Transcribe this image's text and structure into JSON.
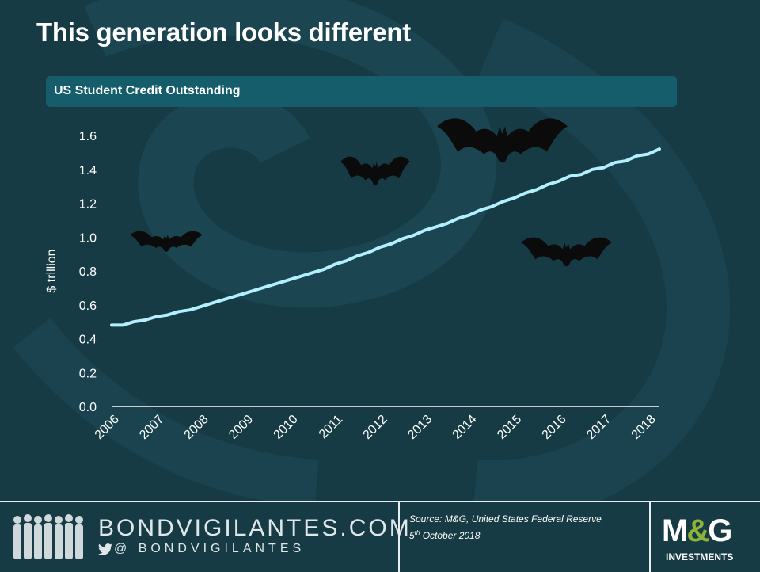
{
  "page": {
    "title": "This generation looks different"
  },
  "chart_panel": {
    "header": "US Student Credit Outstanding"
  },
  "chart_data": {
    "type": "line",
    "title": "US Student Credit Outstanding",
    "ylabel": "$ trillion",
    "xlabel": "",
    "x_tick_labels": [
      "2006",
      "2007",
      "2008",
      "2009",
      "2010",
      "2011",
      "2012",
      "2013",
      "2014",
      "2015",
      "2016",
      "2017",
      "2018"
    ],
    "y_tick_labels": [
      "0.0",
      "0.2",
      "0.4",
      "0.6",
      "0.8",
      "1.0",
      "1.2",
      "1.4",
      "1.6"
    ],
    "ylim": [
      0,
      1.6
    ],
    "xlim": [
      2006,
      2018.25
    ],
    "grid": false,
    "series": [
      {
        "name": "",
        "color": "#b3f0ff",
        "x": [
          2006.0,
          2006.25,
          2006.5,
          2006.75,
          2007.0,
          2007.25,
          2007.5,
          2007.75,
          2008.0,
          2008.25,
          2008.5,
          2008.75,
          2009.0,
          2009.25,
          2009.5,
          2009.75,
          2010.0,
          2010.25,
          2010.5,
          2010.75,
          2011.0,
          2011.25,
          2011.5,
          2011.75,
          2012.0,
          2012.25,
          2012.5,
          2012.75,
          2013.0,
          2013.25,
          2013.5,
          2013.75,
          2014.0,
          2014.25,
          2014.5,
          2014.75,
          2015.0,
          2015.25,
          2015.5,
          2015.75,
          2016.0,
          2016.25,
          2016.5,
          2016.75,
          2017.0,
          2017.25,
          2017.5,
          2017.75,
          2018.0,
          2018.25
        ],
        "y": [
          0.48,
          0.48,
          0.5,
          0.51,
          0.53,
          0.54,
          0.56,
          0.57,
          0.59,
          0.61,
          0.63,
          0.65,
          0.67,
          0.69,
          0.71,
          0.73,
          0.75,
          0.77,
          0.79,
          0.81,
          0.84,
          0.86,
          0.89,
          0.91,
          0.94,
          0.96,
          0.99,
          1.01,
          1.04,
          1.06,
          1.08,
          1.11,
          1.13,
          1.16,
          1.18,
          1.21,
          1.23,
          1.26,
          1.28,
          1.31,
          1.33,
          1.36,
          1.37,
          1.4,
          1.41,
          1.44,
          1.45,
          1.48,
          1.49,
          1.52
        ]
      }
    ]
  },
  "footer": {
    "brand_name": "BONDVIGILANTES.COM",
    "brand_handle": "@ BONDVIGILANTES",
    "source": "Source: M&G, United States Federal Reserve",
    "date_day": "5",
    "date_suffix": "th",
    "date_rest": " October 2018",
    "logo_left": "M",
    "logo_amp": "&",
    "logo_right": "G",
    "logo_sub": "INVESTMENTS"
  },
  "icons": {
    "bat": "bat-icon",
    "twitter": "twitter-icon",
    "people": "people-silhouette-icon"
  },
  "colors": {
    "background": "#163b45",
    "header_bar": "#155d6b",
    "line": "#b3f0ff",
    "logo_accent": "#8fb339"
  }
}
